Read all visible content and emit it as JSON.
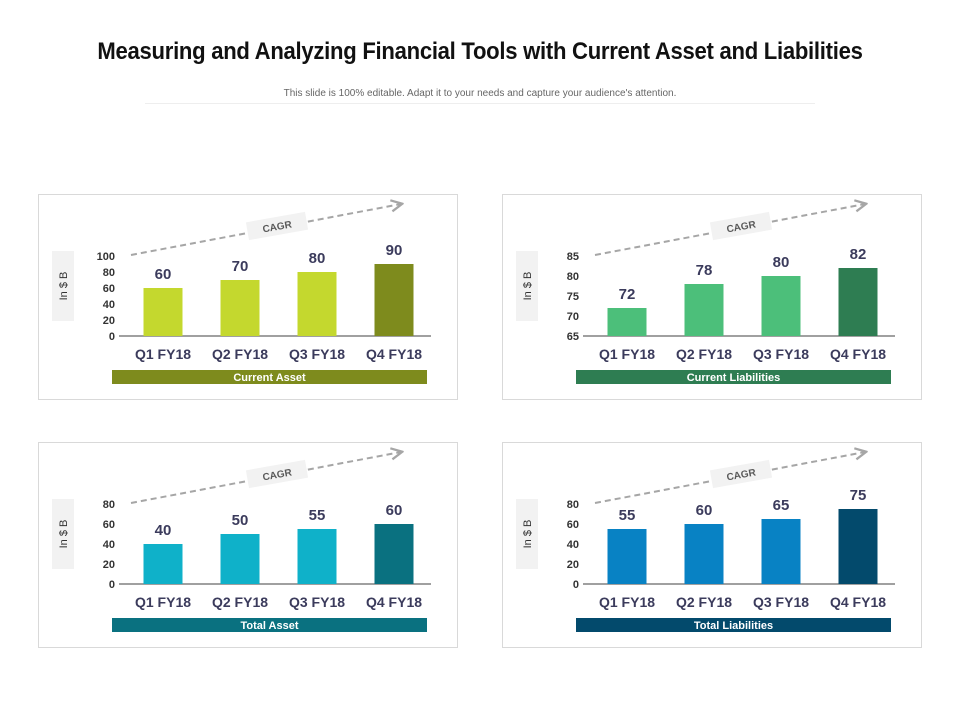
{
  "title": "Measuring and Analyzing Financial Tools with Current Asset and Liabilities",
  "subtitle": "This slide is 100% editable. Adapt it to your needs and capture your audience's attention.",
  "chart_data": [
    {
      "type": "bar",
      "title": "Current Asset",
      "ylabel": "In $ B",
      "annotation": "CAGR",
      "categories": [
        "Q1 FY18",
        "Q2 FY18",
        "Q3 FY18",
        "Q4 FY18"
      ],
      "values": [
        60,
        70,
        80,
        90
      ],
      "ylim": [
        0,
        100
      ],
      "yticks": [
        0,
        20,
        40,
        60,
        80,
        100
      ],
      "colors": [
        "#c4d82e",
        "#c4d82e",
        "#c4d82e",
        "#7e8b1d"
      ],
      "footer_color": "#7e8b1d"
    },
    {
      "type": "bar",
      "title": "Current Liabilities",
      "ylabel": "In $ B",
      "annotation": "CAGR",
      "categories": [
        "Q1 FY18",
        "Q2 FY18",
        "Q3 FY18",
        "Q4 FY18"
      ],
      "values": [
        72,
        78,
        80,
        82
      ],
      "ylim": [
        65,
        85
      ],
      "yticks": [
        65,
        70,
        75,
        80,
        85
      ],
      "colors": [
        "#4cbf7a",
        "#4cbf7a",
        "#4cbf7a",
        "#2e7d52"
      ],
      "footer_color": "#2e7d52"
    },
    {
      "type": "bar",
      "title": "Total Asset",
      "ylabel": "In $ B",
      "annotation": "CAGR",
      "categories": [
        "Q1 FY18",
        "Q2 FY18",
        "Q3 FY18",
        "Q4 FY18"
      ],
      "values": [
        40,
        50,
        55,
        60
      ],
      "ylim": [
        0,
        80
      ],
      "yticks": [
        0,
        20,
        40,
        60,
        80
      ],
      "colors": [
        "#0fb1c9",
        "#0fb1c9",
        "#0fb1c9",
        "#0a7180"
      ],
      "footer_color": "#0a7180"
    },
    {
      "type": "bar",
      "title": "Total Liabilities",
      "ylabel": "In $ B",
      "annotation": "CAGR",
      "categories": [
        "Q1 FY18",
        "Q2 FY18",
        "Q3 FY18",
        "Q4 FY18"
      ],
      "values": [
        55,
        60,
        65,
        75
      ],
      "ylim": [
        0,
        80
      ],
      "yticks": [
        0,
        20,
        40,
        60,
        80
      ],
      "colors": [
        "#0882c4",
        "#0882c4",
        "#0882c4",
        "#034a6c"
      ],
      "footer_color": "#034a6c"
    }
  ]
}
